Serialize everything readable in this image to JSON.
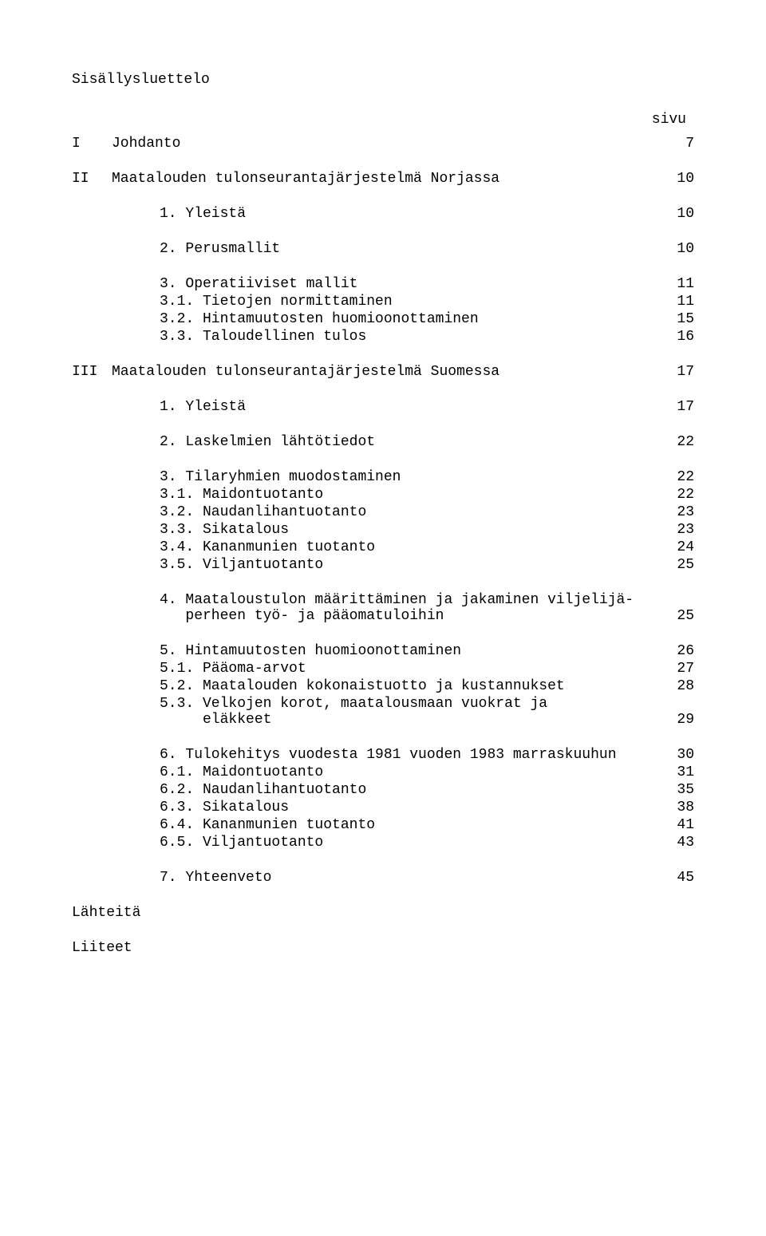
{
  "title": "Sisällysluettelo",
  "page_header": "sivu",
  "footer1": "Lähteitä",
  "footer2": "Liiteet",
  "entries": [
    {
      "label": "I",
      "text": "Johdanto",
      "page": "7",
      "indent": 0,
      "gapAfter": 24
    },
    {
      "label": "II",
      "text": "Maatalouden tulonseurantajärjestelmä Norjassa",
      "page": "10",
      "indent": 0,
      "gapAfter": 24
    },
    {
      "label": "",
      "text": "1. Yleistä",
      "page": "10",
      "indent": 1,
      "gapAfter": 24
    },
    {
      "label": "",
      "text": "2. Perusmallit",
      "page": "10",
      "indent": 1,
      "gapAfter": 24
    },
    {
      "label": "",
      "text": "3. Operatiiviset mallit",
      "page": "11",
      "indent": 1,
      "gapAfter": 2
    },
    {
      "label": "",
      "text": "3.1. Tietojen normittaminen",
      "page": "11",
      "indent": 2,
      "gapAfter": 2
    },
    {
      "label": "",
      "text": "3.2. Hintamuutosten huomioonottaminen",
      "page": "15",
      "indent": 2,
      "gapAfter": 2
    },
    {
      "label": "",
      "text": "3.3. Taloudellinen tulos",
      "page": "16",
      "indent": 2,
      "gapAfter": 24
    },
    {
      "label": "III",
      "text": "Maatalouden tulonseurantajärjestelmä Suomessa",
      "page": "17",
      "indent": 0,
      "gapAfter": 24
    },
    {
      "label": "",
      "text": "1. Yleistä",
      "page": "17",
      "indent": 1,
      "gapAfter": 24
    },
    {
      "label": "",
      "text": "2. Laskelmien lähtötiedot",
      "page": "22",
      "indent": 1,
      "gapAfter": 24
    },
    {
      "label": "",
      "text": "3. Tilaryhmien muodostaminen",
      "page": "22",
      "indent": 1,
      "gapAfter": 2
    },
    {
      "label": "",
      "text": "3.1. Maidontuotanto",
      "page": "22",
      "indent": 2,
      "gapAfter": 2
    },
    {
      "label": "",
      "text": "3.2. Naudanlihantuotanto",
      "page": "23",
      "indent": 2,
      "gapAfter": 2
    },
    {
      "label": "",
      "text": "3.3. Sikatalous",
      "page": "23",
      "indent": 2,
      "gapAfter": 2
    },
    {
      "label": "",
      "text": "3.4. Kananmunien tuotanto",
      "page": "24",
      "indent": 2,
      "gapAfter": 2
    },
    {
      "label": "",
      "text": "3.5. Viljantuotanto",
      "page": "25",
      "indent": 2,
      "gapAfter": 24
    },
    {
      "label": "",
      "text": "4. Maataloustulon määrittäminen ja jakaminen viljelijä-\n   perheen työ- ja pääomatuloihin",
      "page": "25",
      "indent": 1,
      "gapAfter": 24,
      "multiline": true
    },
    {
      "label": "",
      "text": "5. Hintamuutosten huomioonottaminen",
      "page": "26",
      "indent": 1,
      "gapAfter": 2
    },
    {
      "label": "",
      "text": "5.1. Pääoma-arvot",
      "page": "27",
      "indent": 2,
      "gapAfter": 2
    },
    {
      "label": "",
      "text": "5.2. Maatalouden kokonaistuotto ja kustannukset",
      "page": "28",
      "indent": 2,
      "gapAfter": 2
    },
    {
      "label": "",
      "text": "5.3. Velkojen korot, maatalousmaan vuokrat ja\n     eläkkeet",
      "page": "29",
      "indent": 2,
      "gapAfter": 24,
      "multiline": true
    },
    {
      "label": "",
      "text": "6. Tulokehitys vuodesta 1981 vuoden 1983 marraskuuhun",
      "page": "30",
      "indent": 1,
      "gapAfter": 2
    },
    {
      "label": "",
      "text": "6.1. Maidontuotanto",
      "page": "31",
      "indent": 2,
      "gapAfter": 2
    },
    {
      "label": "",
      "text": "6.2. Naudanlihantuotanto",
      "page": "35",
      "indent": 2,
      "gapAfter": 2
    },
    {
      "label": "",
      "text": "6.3. Sikatalous",
      "page": "38",
      "indent": 2,
      "gapAfter": 2
    },
    {
      "label": "",
      "text": "6.4. Kananmunien tuotanto",
      "page": "41",
      "indent": 2,
      "gapAfter": 2
    },
    {
      "label": "",
      "text": "6.5. Viljantuotanto",
      "page": "43",
      "indent": 2,
      "gapAfter": 24
    },
    {
      "label": "",
      "text": "7. Yhteenveto",
      "page": "45",
      "indent": 1,
      "gapAfter": 24
    }
  ]
}
